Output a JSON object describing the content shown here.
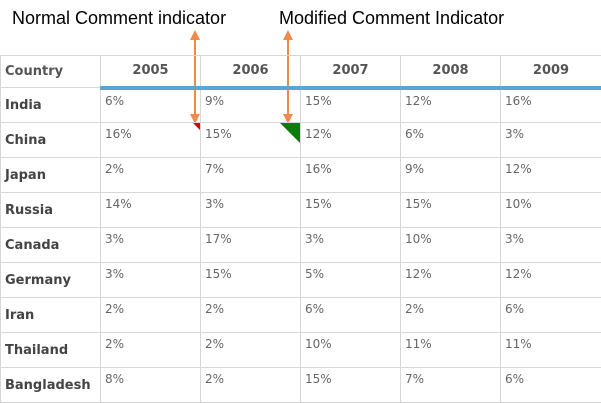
{
  "annotations": {
    "normal": "Normal Comment indicator",
    "modified": "Modified Comment Indicator"
  },
  "colors": {
    "arrow": "#f08a4b",
    "header_border": "#5aa5d6",
    "normal_indicator": "#e00000",
    "modified_indicator": "#0a7d0a"
  },
  "grid": {
    "columns": [
      "Country",
      "2005",
      "2006",
      "2007",
      "2008",
      "2009"
    ],
    "rows": [
      {
        "country": "India",
        "values": [
          "6%",
          "9%",
          "15%",
          "12%",
          "16%"
        ]
      },
      {
        "country": "China",
        "values": [
          "16%",
          "15%",
          "12%",
          "6%",
          "3%"
        ]
      },
      {
        "country": "Japan",
        "values": [
          "2%",
          "7%",
          "16%",
          "9%",
          "12%"
        ]
      },
      {
        "country": "Russia",
        "values": [
          "14%",
          "3%",
          "15%",
          "15%",
          "10%"
        ]
      },
      {
        "country": "Canada",
        "values": [
          "3%",
          "17%",
          "3%",
          "10%",
          "3%"
        ]
      },
      {
        "country": "Germany",
        "values": [
          "3%",
          "15%",
          "5%",
          "12%",
          "12%"
        ]
      },
      {
        "country": "Iran",
        "values": [
          "2%",
          "2%",
          "6%",
          "2%",
          "6%"
        ]
      },
      {
        "country": "Thailand",
        "values": [
          "2%",
          "2%",
          "10%",
          "11%",
          "11%"
        ]
      },
      {
        "country": "Bangladesh",
        "values": [
          "8%",
          "2%",
          "15%",
          "7%",
          "6%"
        ]
      }
    ]
  }
}
